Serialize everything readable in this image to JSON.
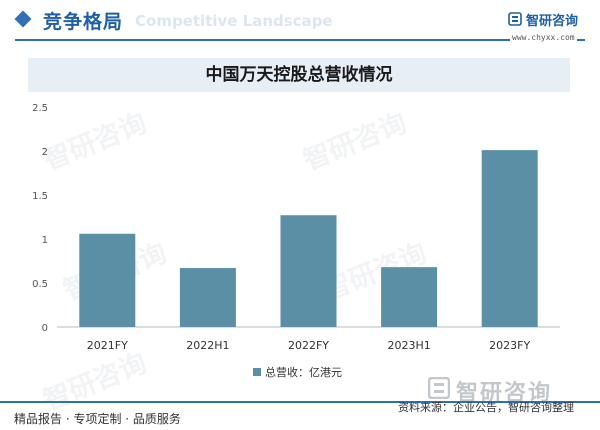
{
  "header": {
    "section_title": "竞争格局",
    "section_subtitle": "Competitive Landscape",
    "brand_name": "智研咨询",
    "brand_url": "www.chyxx.com"
  },
  "watermark_text": "智研咨询",
  "colors": {
    "accent": "#2f6fb2",
    "bar": "#5a8fa6",
    "banner": "#e6eef6"
  },
  "chart_data": {
    "type": "bar",
    "title": "中国万天控股总营收情况",
    "categories": [
      "2021FY",
      "2022H1",
      "2022FY",
      "2023H1",
      "2023FY"
    ],
    "series": [
      {
        "name": "总营收：亿港元",
        "values": [
          1.06,
          0.67,
          1.27,
          0.68,
          2.01
        ]
      }
    ],
    "ylim": [
      0,
      2.5
    ],
    "yticks": [
      "0",
      "0.5",
      "1",
      "1.5",
      "2",
      "2.5"
    ],
    "grid": false,
    "legend": "bottom"
  },
  "footer": {
    "tagline": "精品报告 · 专项定制 · 品质服务",
    "source": "资料来源：企业公告，智研咨询整理",
    "brand_name": "智研咨询"
  }
}
